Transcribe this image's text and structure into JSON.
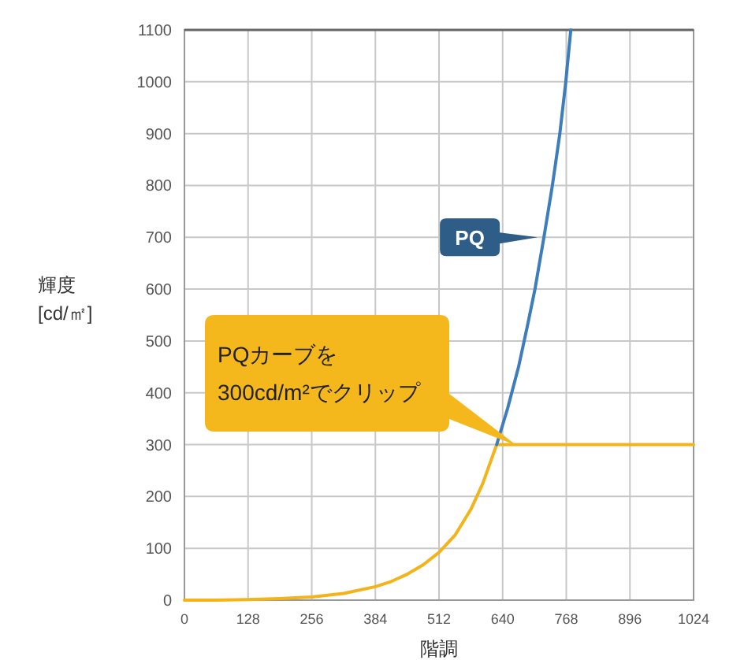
{
  "chart_data": {
    "type": "line",
    "xlabel": "階調",
    "ylabel": "輝度\n[cd/㎡]",
    "series": [
      {
        "name": "PQ",
        "color": "#3d7dbb",
        "x": [
          628,
          650,
          672,
          690,
          705,
          723,
          740,
          755,
          767,
          777
        ],
        "values": [
          300,
          370,
          450,
          530,
          600,
          700,
          800,
          900,
          1000,
          1100
        ]
      },
      {
        "color": "#f2b31b",
        "x": [
          0,
          64,
          128,
          192,
          256,
          320,
          384,
          416,
          448,
          480,
          512,
          544,
          576,
          600,
          628,
          768,
          896,
          1024
        ],
        "values": [
          0,
          0,
          1,
          3,
          6,
          13,
          26,
          36,
          50,
          68,
          92,
          125,
          175,
          225,
          300,
          300,
          300,
          300
        ]
      }
    ],
    "xlim": [
      0,
      1024
    ],
    "ylim": [
      0,
      1100
    ],
    "xticks": [
      0,
      128,
      256,
      384,
      512,
      640,
      768,
      896,
      1024
    ],
    "yticks": [
      0,
      100,
      200,
      300,
      400,
      500,
      600,
      700,
      800,
      900,
      1000,
      1100
    ],
    "grid": true,
    "line_style": "solid",
    "annotations": [
      "PQカーブを\n300cd/m²でクリップ"
    ]
  }
}
